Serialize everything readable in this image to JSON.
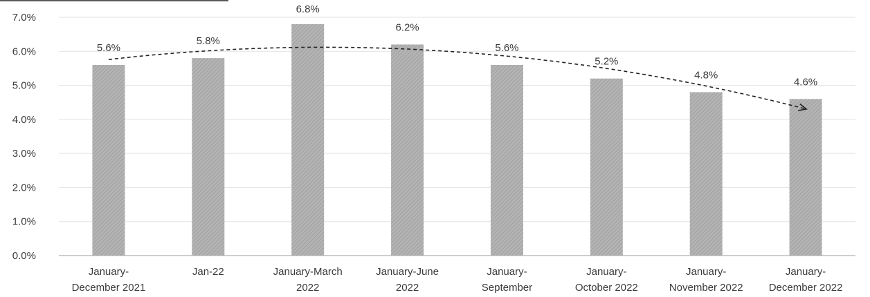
{
  "chart_data": {
    "type": "bar",
    "title": "",
    "xlabel": "",
    "ylabel": "",
    "ylim": [
      0,
      7
    ],
    "y_ticks": [
      "0.0%",
      "1.0%",
      "2.0%",
      "3.0%",
      "4.0%",
      "5.0%",
      "6.0%",
      "7.0%"
    ],
    "grid": true,
    "categories": [
      [
        "January-",
        "December 2021"
      ],
      [
        "Jan-22"
      ],
      [
        "January-March",
        "2022"
      ],
      [
        "January-June",
        "2022"
      ],
      [
        "January-",
        "September"
      ],
      [
        "January-",
        "October 2022"
      ],
      [
        "January-",
        "November 2022"
      ],
      [
        "January-",
        "December 2022"
      ]
    ],
    "values": [
      5.6,
      5.8,
      6.8,
      6.2,
      5.6,
      5.2,
      4.8,
      4.6
    ],
    "data_labels": [
      "5.6%",
      "5.8%",
      "6.8%",
      "6.2%",
      "5.6%",
      "5.2%",
      "4.8%",
      "4.6%"
    ],
    "trendline": {
      "style": "dashed",
      "arrow": true
    },
    "colors": {
      "bar": "#a8a8a8",
      "grid": "#e2e2e2",
      "axis": "#bdbdbd",
      "trend": "#222222"
    }
  }
}
